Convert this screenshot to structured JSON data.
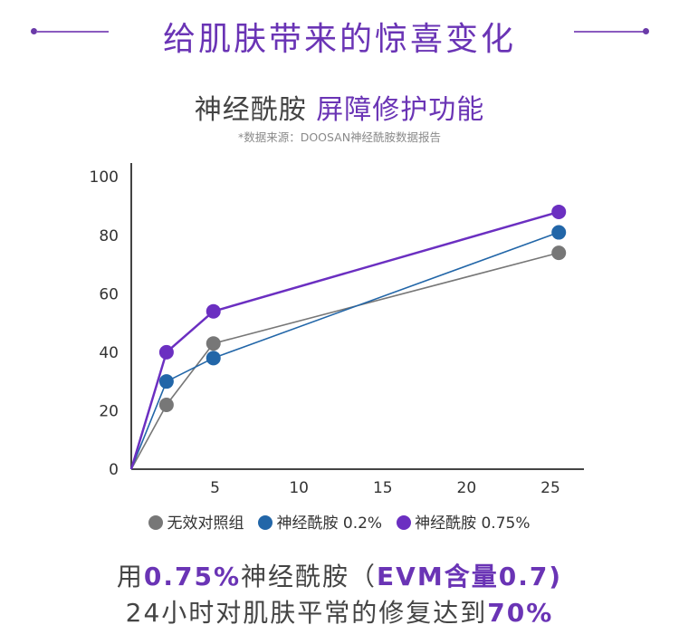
{
  "header": {
    "title": "给肌肤带来的惊喜变化"
  },
  "subtitle": {
    "part1": "神经酰胺 ",
    "part2": "屏障修护功能"
  },
  "source_note": "*数据来源：DOOSAN神经酰胺数据报告",
  "chart_data": {
    "type": "line",
    "x_ticks": [
      5,
      10,
      15,
      20,
      25
    ],
    "y_ticks": [
      0,
      20,
      40,
      60,
      80,
      100
    ],
    "xlim": [
      0,
      27
    ],
    "ylim": [
      0,
      100
    ],
    "grid": false,
    "legend_position": "bottom",
    "series": [
      {
        "name": "无效对照组",
        "color": "#777777",
        "points": [
          [
            0,
            0
          ],
          [
            2.1,
            22
          ],
          [
            4.9,
            43
          ],
          [
            25.5,
            74
          ]
        ]
      },
      {
        "name": "神经酰胺 0.2%",
        "color": "#2266a8",
        "points": [
          [
            0,
            0
          ],
          [
            2.1,
            30
          ],
          [
            4.9,
            38
          ],
          [
            25.5,
            81
          ]
        ]
      },
      {
        "name": "神经酰胺 0.75%",
        "color": "#6b2fc1",
        "points": [
          [
            0,
            0
          ],
          [
            2.1,
            40
          ],
          [
            4.9,
            54
          ],
          [
            25.5,
            88
          ]
        ]
      }
    ]
  },
  "footer": {
    "line1_a": "用",
    "line1_b": "0.75%",
    "line1_c": "神经酰胺（",
    "line1_d": "EVM含量0.7)",
    "line2_a": "24小时对肌肤平常的修复达到",
    "line2_b": "70%"
  }
}
